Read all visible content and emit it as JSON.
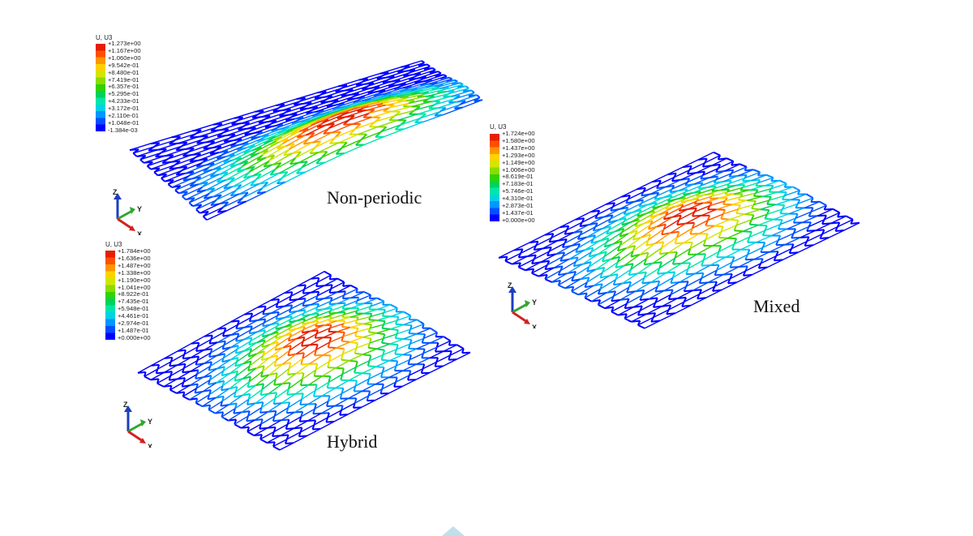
{
  "colors": {
    "contour_scale": [
      "#0000ff",
      "#0050ff",
      "#0096ff",
      "#00d2e6",
      "#00e6aa",
      "#00d25a",
      "#32d200",
      "#8cdc00",
      "#d2e600",
      "#ffd200",
      "#ff9600",
      "#ff5000",
      "#e61e00"
    ]
  },
  "panels": [
    {
      "id": "non-periodic",
      "caption": "Non-periodic",
      "legend_title": "U, U3",
      "legend_values": [
        "+1.273e+00",
        "+1.167e+00",
        "+1.060e+00",
        "+9.542e-01",
        "+8.480e-01",
        "+7.419e-01",
        "+6.357e-01",
        "+5.295e-01",
        "+4.233e-01",
        "+3.172e-01",
        "+2.110e-01",
        "+1.048e-01",
        "-1.384e-03"
      ],
      "axes": {
        "z": "Z",
        "y": "Y",
        "x": "X"
      },
      "peak_fraction_from_left": 0.72
    },
    {
      "id": "hybrid",
      "caption": "Hybrid",
      "legend_title": "U, U3",
      "legend_values": [
        "+1.784e+00",
        "+1.636e+00",
        "+1.487e+00",
        "+1.338e+00",
        "+1.190e+00",
        "+1.041e+00",
        "+8.922e-01",
        "+7.435e-01",
        "+5.948e-01",
        "+4.461e-01",
        "+2.974e-01",
        "+1.487e-01",
        "+0.000e+00"
      ],
      "axes": {
        "z": "Z",
        "y": "Y",
        "x": "X"
      },
      "peak_fraction_from_left": 0.52
    },
    {
      "id": "mixed",
      "caption": "Mixed",
      "legend_title": "U, U3",
      "legend_values": [
        "+1.724e+00",
        "+1.580e+00",
        "+1.437e+00",
        "+1.293e+00",
        "+1.149e+00",
        "+1.006e+00",
        "+8.619e-01",
        "+7.183e-01",
        "+5.746e-01",
        "+4.310e-01",
        "+2.873e-01",
        "+1.437e-01",
        "+0.000e+00"
      ],
      "axes": {
        "z": "Z",
        "y": "Y",
        "x": "X"
      },
      "peak_fraction_from_left": 0.5
    }
  ]
}
